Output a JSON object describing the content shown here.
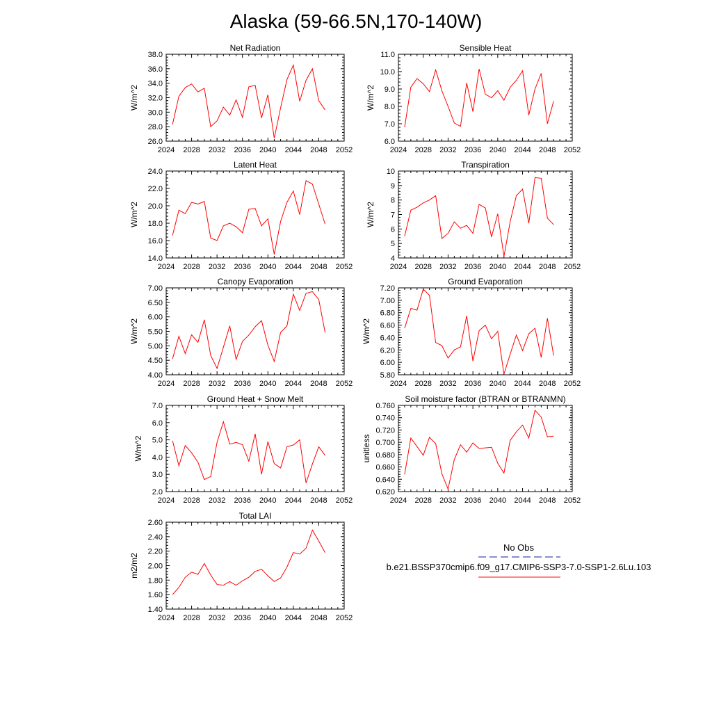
{
  "title": "Alaska (59-66.5N,170-140W)",
  "legend": {
    "obs_label": "No Obs",
    "obs_color": "#1a1aa0",
    "model_label": "b.e21.BSSP370cmip6.f09_g17.CMIP6-SSP3-7.0-SSP1-2.6Lu.103",
    "model_color": "#ff0000"
  },
  "chart_data": [
    {
      "type": "line",
      "title": "Net Radiation",
      "ylabel": "W/m^2",
      "xlim": [
        2024,
        2052
      ],
      "ylim": [
        26.0,
        38.0
      ],
      "xticks": [
        "2024",
        "2028",
        "2032",
        "2036",
        "2040",
        "2044",
        "2048",
        "2052"
      ],
      "yticks": [
        "26.0",
        "28.0",
        "30.0",
        "32.0",
        "34.0",
        "36.0",
        "38.0"
      ],
      "x": [
        2025,
        2026,
        2027,
        2028,
        2029,
        2030,
        2031,
        2032,
        2033,
        2034,
        2035,
        2036,
        2037,
        2038,
        2039,
        2040,
        2041,
        2042,
        2043,
        2044,
        2045,
        2046,
        2047,
        2048,
        2049
      ],
      "series": [
        {
          "values": [
            28.3,
            32.2,
            33.4,
            33.9,
            32.8,
            33.3,
            28.0,
            28.8,
            30.7,
            29.6,
            31.7,
            29.3,
            33.5,
            33.7,
            29.2,
            32.4,
            26.4,
            30.6,
            34.5,
            36.5,
            31.5,
            34.4,
            36.0,
            31.6,
            30.3
          ]
        }
      ]
    },
    {
      "type": "line",
      "title": "Sensible Heat",
      "ylabel": "W/m^2",
      "xlim": [
        2024,
        2052
      ],
      "ylim": [
        6.0,
        11.0
      ],
      "xticks": [
        "2024",
        "2028",
        "2032",
        "2036",
        "2040",
        "2044",
        "2048",
        "2052"
      ],
      "yticks": [
        "6.0",
        "7.0",
        "8.0",
        "9.0",
        "10.0",
        "11.0"
      ],
      "x": [
        2025,
        2026,
        2027,
        2028,
        2029,
        2030,
        2031,
        2032,
        2033,
        2034,
        2035,
        2036,
        2037,
        2038,
        2039,
        2040,
        2041,
        2042,
        2043,
        2044,
        2045,
        2046,
        2047,
        2048,
        2049
      ],
      "series": [
        {
          "values": [
            6.8,
            9.1,
            9.6,
            9.3,
            8.85,
            10.1,
            8.9,
            8.0,
            7.05,
            6.85,
            9.35,
            7.7,
            10.15,
            8.7,
            8.5,
            8.9,
            8.35,
            9.1,
            9.5,
            10.05,
            7.5,
            9.0,
            9.9,
            7.0,
            8.3
          ]
        }
      ]
    },
    {
      "type": "line",
      "title": "Latent Heat",
      "ylabel": "W/m^2",
      "xlim": [
        2024,
        2052
      ],
      "ylim": [
        14.0,
        24.0
      ],
      "xticks": [
        "2024",
        "2028",
        "2032",
        "2036",
        "2040",
        "2044",
        "2048",
        "2052"
      ],
      "yticks": [
        "14.0",
        "16.0",
        "18.0",
        "20.0",
        "22.0",
        "24.0"
      ],
      "x": [
        2025,
        2026,
        2027,
        2028,
        2029,
        2030,
        2031,
        2032,
        2033,
        2034,
        2035,
        2036,
        2037,
        2038,
        2039,
        2040,
        2041,
        2042,
        2043,
        2044,
        2045,
        2046,
        2047,
        2048,
        2049
      ],
      "series": [
        {
          "values": [
            16.6,
            19.5,
            19.1,
            20.4,
            20.2,
            20.5,
            16.3,
            16.0,
            17.7,
            18.0,
            17.6,
            16.9,
            19.6,
            19.7,
            17.7,
            18.5,
            14.4,
            18.2,
            20.4,
            21.7,
            19.0,
            22.9,
            22.5,
            20.2,
            17.9
          ]
        }
      ]
    },
    {
      "type": "line",
      "title": "Transpiration",
      "ylabel": "W/m^2",
      "xlim": [
        2024,
        2052
      ],
      "ylim": [
        4,
        10
      ],
      "xticks": [
        "2024",
        "2028",
        "2032",
        "2036",
        "2040",
        "2044",
        "2048",
        "2052"
      ],
      "yticks": [
        "4",
        "5",
        "6",
        "7",
        "8",
        "9",
        "10"
      ],
      "x": [
        2025,
        2026,
        2027,
        2028,
        2029,
        2030,
        2031,
        2032,
        2033,
        2034,
        2035,
        2036,
        2037,
        2038,
        2039,
        2040,
        2041,
        2042,
        2043,
        2044,
        2045,
        2046,
        2047,
        2048,
        2049
      ],
      "series": [
        {
          "values": [
            5.5,
            7.3,
            7.5,
            7.8,
            8.0,
            8.3,
            5.35,
            5.7,
            6.5,
            6.05,
            6.25,
            5.7,
            7.7,
            7.45,
            5.45,
            7.05,
            4.1,
            6.5,
            8.3,
            8.75,
            6.4,
            9.55,
            9.5,
            6.75,
            6.3
          ]
        }
      ]
    },
    {
      "type": "line",
      "title": "Canopy Evaporation",
      "ylabel": "W/m^2",
      "xlim": [
        2024,
        2052
      ],
      "ylim": [
        4.0,
        7.0
      ],
      "xticks": [
        "2024",
        "2028",
        "2032",
        "2036",
        "2040",
        "2044",
        "2048",
        "2052"
      ],
      "yticks": [
        "4.00",
        "4.50",
        "5.00",
        "5.50",
        "6.00",
        "6.50",
        "7.00"
      ],
      "x": [
        2025,
        2026,
        2027,
        2028,
        2029,
        2030,
        2031,
        2032,
        2033,
        2034,
        2035,
        2036,
        2037,
        2038,
        2039,
        2040,
        2041,
        2042,
        2043,
        2044,
        2045,
        2046,
        2047,
        2048,
        2049
      ],
      "series": [
        {
          "values": [
            4.55,
            5.33,
            4.73,
            5.38,
            5.12,
            5.9,
            4.67,
            4.22,
            4.95,
            5.69,
            4.53,
            5.15,
            5.37,
            5.66,
            5.87,
            5.02,
            4.46,
            5.46,
            5.69,
            6.78,
            6.22,
            6.81,
            6.87,
            6.6,
            5.46
          ]
        }
      ]
    },
    {
      "type": "line",
      "title": "Ground Evaporation",
      "ylabel": "W/m^2",
      "xlim": [
        2024,
        2052
      ],
      "ylim": [
        5.8,
        7.2
      ],
      "xticks": [
        "2024",
        "2028",
        "2032",
        "2036",
        "2040",
        "2044",
        "2048",
        "2052"
      ],
      "yticks": [
        "5.80",
        "6.00",
        "6.20",
        "6.40",
        "6.60",
        "6.80",
        "7.00",
        "7.20"
      ],
      "x": [
        2025,
        2026,
        2027,
        2028,
        2029,
        2030,
        2031,
        2032,
        2033,
        2034,
        2035,
        2036,
        2037,
        2038,
        2039,
        2040,
        2041,
        2042,
        2043,
        2044,
        2045,
        2046,
        2047,
        2048,
        2049
      ],
      "series": [
        {
          "values": [
            6.55,
            6.87,
            6.84,
            7.18,
            7.08,
            6.32,
            6.27,
            6.07,
            6.2,
            6.25,
            6.75,
            6.02,
            6.51,
            6.6,
            6.38,
            6.5,
            5.81,
            6.13,
            6.44,
            6.19,
            6.46,
            6.55,
            6.08,
            6.71,
            6.11
          ]
        }
      ]
    },
    {
      "type": "line",
      "title": "Ground Heat + Snow Melt",
      "ylabel": "W/m^2",
      "xlim": [
        2024,
        2052
      ],
      "ylim": [
        2.0,
        7.0
      ],
      "xticks": [
        "2024",
        "2028",
        "2032",
        "2036",
        "2040",
        "2044",
        "2048",
        "2052"
      ],
      "yticks": [
        "2.0",
        "3.0",
        "4.0",
        "5.0",
        "6.0",
        "7.0"
      ],
      "x": [
        2025,
        2026,
        2027,
        2028,
        2029,
        2030,
        2031,
        2032,
        2033,
        2034,
        2035,
        2036,
        2037,
        2038,
        2039,
        2040,
        2041,
        2042,
        2043,
        2044,
        2045,
        2046,
        2047,
        2048,
        2049
      ],
      "series": [
        {
          "values": [
            4.95,
            3.5,
            4.67,
            4.25,
            3.7,
            2.7,
            2.87,
            4.85,
            6.05,
            4.75,
            4.85,
            4.72,
            3.76,
            5.35,
            3.0,
            4.9,
            3.62,
            3.37,
            4.6,
            4.7,
            5.0,
            2.5,
            3.6,
            4.6,
            4.1
          ]
        }
      ]
    },
    {
      "type": "line",
      "title": "Soil moisture factor (BTRAN or BTRANMN)",
      "ylabel": "unitless",
      "xlim": [
        2024,
        2052
      ],
      "ylim": [
        0.62,
        0.76
      ],
      "xticks": [
        "2024",
        "2028",
        "2032",
        "2036",
        "2040",
        "2044",
        "2048",
        "2052"
      ],
      "yticks": [
        "0.620",
        "0.640",
        "0.660",
        "0.680",
        "0.700",
        "0.720",
        "0.740",
        "0.760"
      ],
      "x": [
        2025,
        2026,
        2027,
        2028,
        2029,
        2030,
        2031,
        2032,
        2033,
        2034,
        2035,
        2036,
        2037,
        2038,
        2039,
        2040,
        2041,
        2042,
        2043,
        2044,
        2045,
        2046,
        2047,
        2048,
        2049
      ],
      "series": [
        {
          "values": [
            0.648,
            0.707,
            0.693,
            0.679,
            0.708,
            0.698,
            0.649,
            0.624,
            0.672,
            0.696,
            0.684,
            0.699,
            0.69,
            0.691,
            0.692,
            0.666,
            0.65,
            0.703,
            0.717,
            0.728,
            0.707,
            0.752,
            0.741,
            0.709,
            0.71
          ]
        }
      ]
    },
    {
      "type": "line",
      "title": "Total LAI",
      "ylabel": "m2/m2",
      "xlim": [
        2024,
        2052
      ],
      "ylim": [
        1.4,
        2.6
      ],
      "xticks": [
        "2024",
        "2028",
        "2032",
        "2036",
        "2040",
        "2044",
        "2048",
        "2052"
      ],
      "yticks": [
        "1.40",
        "1.60",
        "1.80",
        "2.00",
        "2.20",
        "2.40",
        "2.60"
      ],
      "x": [
        2025,
        2026,
        2027,
        2028,
        2029,
        2030,
        2031,
        2032,
        2033,
        2034,
        2035,
        2036,
        2037,
        2038,
        2039,
        2040,
        2041,
        2042,
        2043,
        2044,
        2045,
        2046,
        2047,
        2048,
        2049
      ],
      "series": [
        {
          "values": [
            1.6,
            1.7,
            1.84,
            1.91,
            1.88,
            2.03,
            1.87,
            1.74,
            1.73,
            1.78,
            1.73,
            1.79,
            1.84,
            1.92,
            1.95,
            1.86,
            1.78,
            1.83,
            1.98,
            2.18,
            2.16,
            2.24,
            2.49,
            2.34,
            2.18
          ]
        }
      ]
    }
  ]
}
